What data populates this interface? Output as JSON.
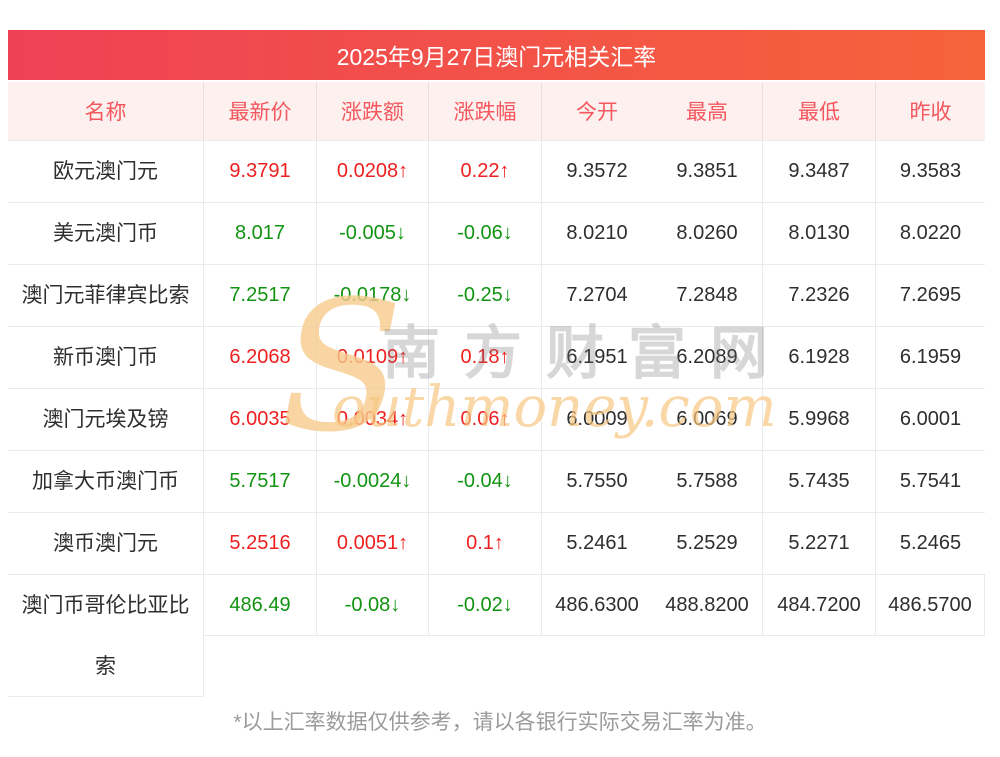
{
  "title": "2025年9月27日澳门元相关汇率",
  "table": {
    "columns": [
      "名称",
      "最新价",
      "涨跌额",
      "涨跌幅",
      "今开",
      "最高",
      "最低",
      "昨收"
    ],
    "rows": [
      {
        "name": "欧元澳门元",
        "latest": "9.3791",
        "change": "0.0208↑",
        "pct": "0.22↑",
        "open": "9.3572",
        "high": "9.3851",
        "low": "9.3487",
        "prev": "9.3583",
        "trend": "up"
      },
      {
        "name": "美元澳门币",
        "latest": "8.017",
        "change": "-0.005↓",
        "pct": "-0.06↓",
        "open": "8.0210",
        "high": "8.0260",
        "low": "8.0130",
        "prev": "8.0220",
        "trend": "down"
      },
      {
        "name": "澳门元菲律宾比索",
        "latest": "7.2517",
        "change": "-0.0178↓",
        "pct": "-0.25↓",
        "open": "7.2704",
        "high": "7.2848",
        "low": "7.2326",
        "prev": "7.2695",
        "trend": "down"
      },
      {
        "name": "新币澳门币",
        "latest": "6.2068",
        "change": "0.0109↑",
        "pct": "0.18↑",
        "open": "6.1951",
        "high": "6.2089",
        "low": "6.1928",
        "prev": "6.1959",
        "trend": "up"
      },
      {
        "name": "澳门元埃及镑",
        "latest": "6.0035",
        "change": "0.0034↑",
        "pct": "0.06↑",
        "open": "6.0009",
        "high": "6.0069",
        "low": "5.9968",
        "prev": "6.0001",
        "trend": "up"
      },
      {
        "name": "加拿大币澳门币",
        "latest": "5.7517",
        "change": "-0.0024↓",
        "pct": "-0.04↓",
        "open": "5.7550",
        "high": "5.7588",
        "low": "5.7435",
        "prev": "5.7541",
        "trend": "down"
      },
      {
        "name": "澳币澳门元",
        "latest": "5.2516",
        "change": "0.0051↑",
        "pct": "0.1↑",
        "open": "5.2461",
        "high": "5.2529",
        "low": "5.2271",
        "prev": "5.2465",
        "trend": "up"
      },
      {
        "name": "澳门币哥伦比亚比索",
        "latest": "486.49",
        "change": "-0.08↓",
        "pct": "-0.02↓",
        "open": "486.6300",
        "high": "488.8200",
        "low": "484.7200",
        "prev": "486.5700",
        "trend": "down"
      }
    ]
  },
  "watermark": {
    "s": "S",
    "cn": "南方财富网",
    "en": "outhmoney.com"
  },
  "footer": {
    "note": "*以上汇率数据仅供参考，请以各银行实际交易汇率为准。"
  },
  "colors": {
    "grad_left": "#ef4156",
    "grad_right": "#f6633a",
    "header_bg": "#fdf1ef",
    "header_text": "#f4575e",
    "up": "#ee2020",
    "down": "#129312",
    "border": "#e9e9f0",
    "note": "#9b9b9b"
  }
}
